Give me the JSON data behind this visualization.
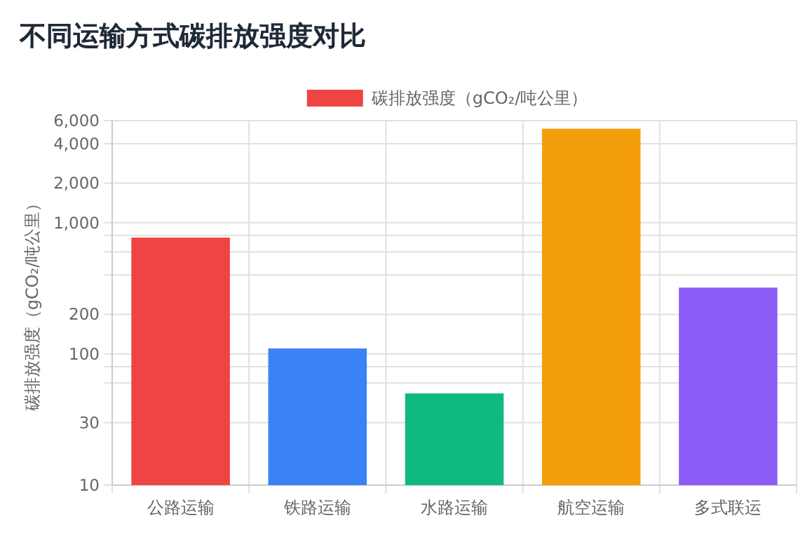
{
  "chart_data": {
    "type": "bar",
    "title": "不同运输方式碳排放强度对比",
    "ylabel": "碳排放强度（gCO₂/吨公里）",
    "categories": [
      "公路运输",
      "铁路运输",
      "水路运输",
      "航空运输",
      "多式联运"
    ],
    "series": [
      {
        "name": "碳排放强度（gCO₂/吨公里）",
        "values": [
          770,
          110,
          50,
          5200,
          320
        ],
        "colors": [
          "#ef4444",
          "#3b82f6",
          "#10b981",
          "#f59e0b",
          "#8b5cf6"
        ]
      }
    ],
    "log": "y",
    "ylim": [
      10,
      6000
    ],
    "yticks": [
      10,
      30,
      {
        "value": 60,
        "label": null
      },
      {
        "value": 80,
        "label": null
      },
      100,
      200,
      {
        "value": 400,
        "label": null
      },
      {
        "value": 600,
        "label": null
      },
      {
        "value": 800,
        "label": null
      },
      {
        "value": 1000,
        "label": "1,000"
      },
      {
        "value": 2000,
        "label": "2,000"
      },
      {
        "value": 4000,
        "label": "4,000"
      },
      {
        "value": 6000,
        "label": "6,000"
      }
    ],
    "grid": true,
    "legend": "top"
  }
}
